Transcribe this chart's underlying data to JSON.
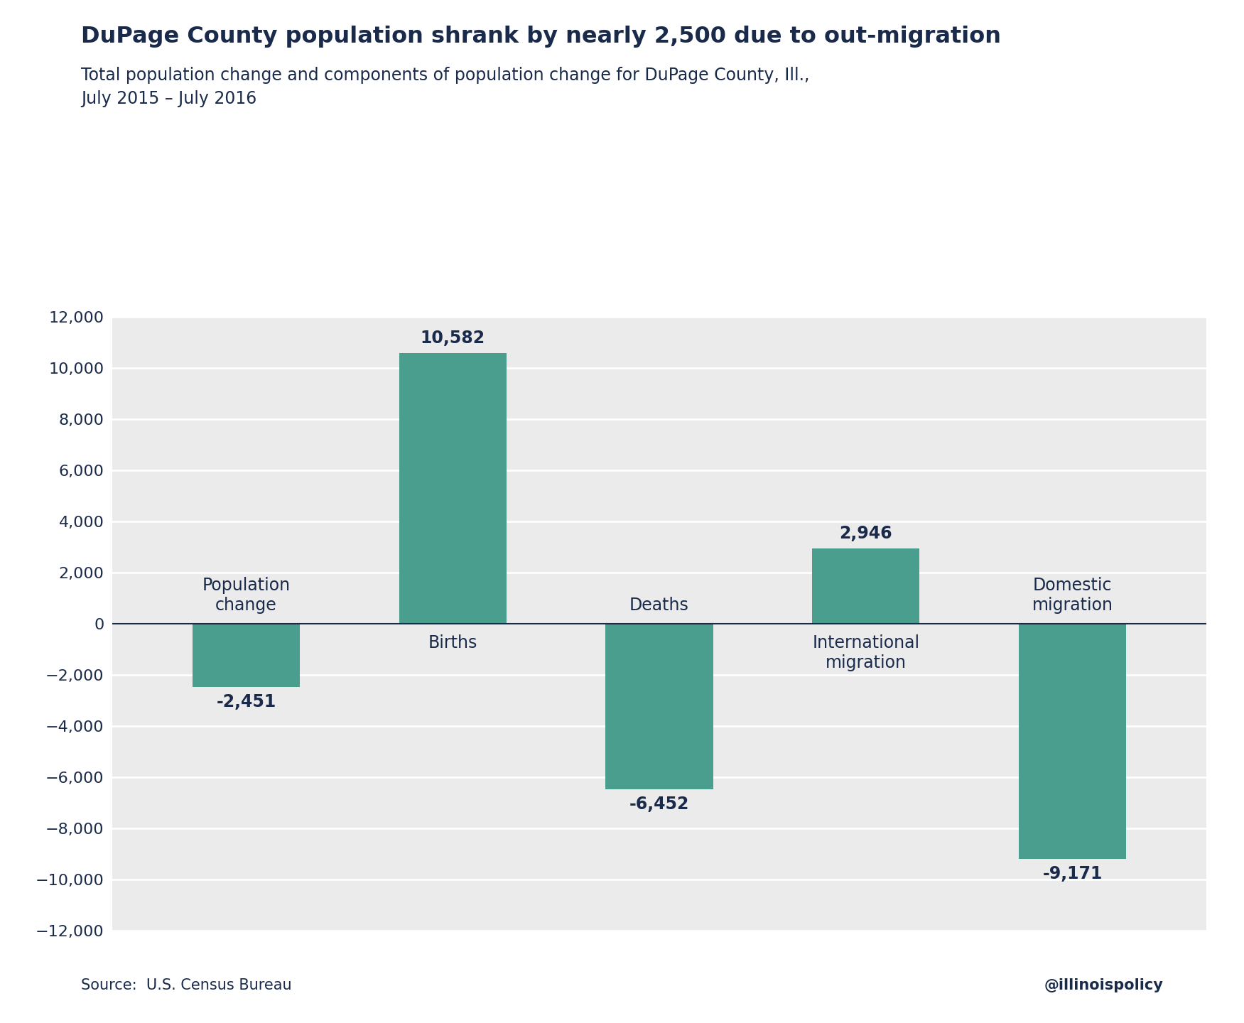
{
  "title": "DuPage County population shrank by nearly 2,500 due to out-migration",
  "subtitle": "Total population change and components of population change for DuPage County, Ill.,\nJuly 2015 – July 2016",
  "categories": [
    "Population\nchange",
    "Births",
    "Deaths",
    "International\nmigration",
    "Domestic\nmigration"
  ],
  "values": [
    -2451,
    10582,
    -6452,
    2946,
    -9171
  ],
  "bar_color": "#4a9e8e",
  "title_color": "#1a2a4a",
  "subtitle_color": "#1a2a4a",
  "label_color": "#1a2a4a",
  "value_label_color": "#1a2a4a",
  "axis_label_color": "#1a2a4a",
  "background_color": "#ffffff",
  "plot_bg_color": "#ebebeb",
  "grid_color": "#ffffff",
  "zero_line_color": "#1a2a4a",
  "source_text": "Source:  U.S. Census Bureau",
  "watermark": "@illinoispolicy",
  "ylim": [
    -12000,
    12000
  ],
  "yticks": [
    -12000,
    -10000,
    -8000,
    -6000,
    -4000,
    -2000,
    0,
    2000,
    4000,
    6000,
    8000,
    10000,
    12000
  ],
  "title_fontsize": 23,
  "subtitle_fontsize": 17,
  "tick_fontsize": 16,
  "label_fontsize": 17,
  "value_fontsize": 17,
  "source_fontsize": 15,
  "bar_width": 0.52
}
